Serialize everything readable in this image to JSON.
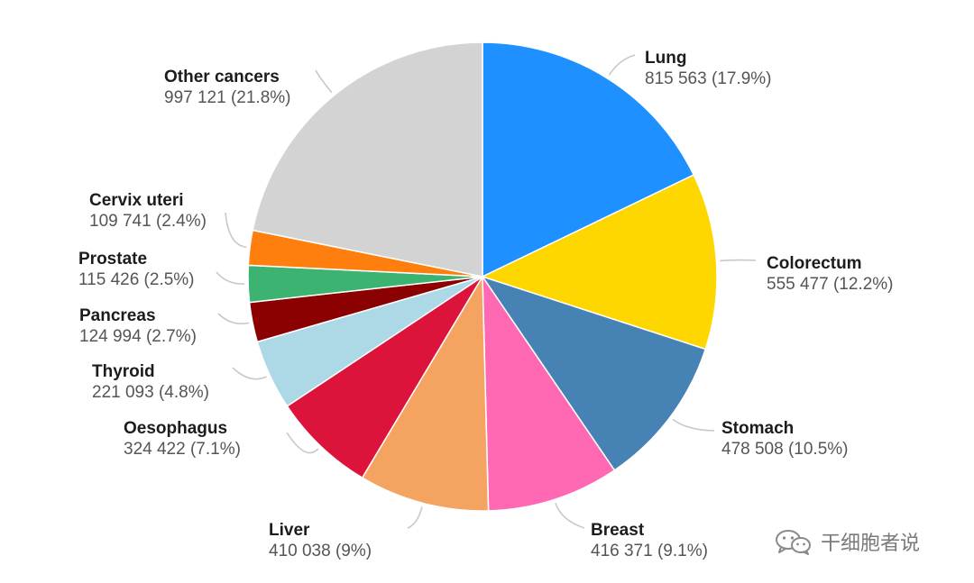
{
  "chart_data": {
    "type": "pie",
    "start": "top",
    "direction": "clockwise",
    "slices": [
      {
        "label": "Lung",
        "value": 815563,
        "percent": 17.9,
        "value_text": "815 563 (17.9%)",
        "color": "#1E90FF"
      },
      {
        "label": "Colorectum",
        "value": 555477,
        "percent": 12.2,
        "value_text": "555 477 (12.2%)",
        "color": "#FFD700"
      },
      {
        "label": "Stomach",
        "value": 478508,
        "percent": 10.5,
        "value_text": "478 508 (10.5%)",
        "color": "#4682B4"
      },
      {
        "label": "Breast",
        "value": 416371,
        "percent": 9.1,
        "value_text": "416 371 (9.1%)",
        "color": "#FF69B4"
      },
      {
        "label": "Liver",
        "value": 410038,
        "percent": 9,
        "value_text": "410 038 (9%)",
        "color": "#F4A460"
      },
      {
        "label": "Oesophagus",
        "value": 324422,
        "percent": 7.1,
        "value_text": "324 422 (7.1%)",
        "color": "#DC143C"
      },
      {
        "label": "Thyroid",
        "value": 221093,
        "percent": 4.8,
        "value_text": "221 093 (4.8%)",
        "color": "#ADD8E6"
      },
      {
        "label": "Pancreas",
        "value": 124994,
        "percent": 2.7,
        "value_text": "124 994 (2.7%)",
        "color": "#8B0000"
      },
      {
        "label": "Prostate",
        "value": 115426,
        "percent": 2.5,
        "value_text": "115 426 (2.5%)",
        "color": "#3CB371"
      },
      {
        "label": "Cervix uteri",
        "value": 109741,
        "percent": 2.4,
        "value_text": "109 741 (2.4%)",
        "color": "#FF7F0E"
      },
      {
        "label": "Other cancers",
        "value": 997121,
        "percent": 21.8,
        "value_text": "997 121 (21.8%)",
        "color": "#D3D3D3"
      }
    ]
  },
  "watermark": {
    "text": "干细胞者说",
    "icon": "wechat-icon"
  }
}
